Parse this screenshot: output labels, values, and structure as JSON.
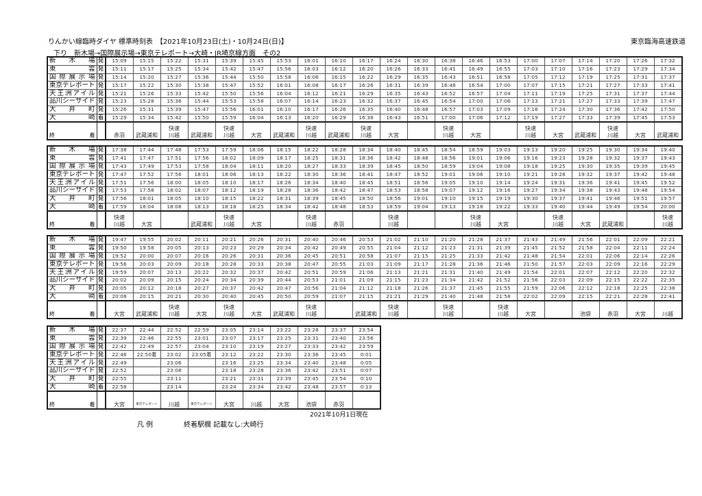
{
  "header": {
    "title": "りんかい線臨時ダイヤ 標準時刻表　【2021年10月23日(土)・10月24日(日)】",
    "company": "東京臨海高速鉄道",
    "subtitle": "下り　新木場→国際展示場→東京テレポート→大崎・JR埼京線方面　その2"
  },
  "stations": [
    {
      "name": "新木場",
      "mark": "発"
    },
    {
      "name": "東雲",
      "mark": "発"
    },
    {
      "name": "国際展示場",
      "mark": "発"
    },
    {
      "name": "東京テレポート",
      "mark": "発"
    },
    {
      "name": "天王洲アイル",
      "mark": "発"
    },
    {
      "name": "品川シーサイド",
      "mark": "発"
    },
    {
      "name": "大井町",
      "mark": "発"
    },
    {
      "name": "大崎",
      "mark": "着"
    }
  ],
  "destination_label": "終着",
  "blocks": [
    {
      "times": [
        [
          "15:09",
          "15:15",
          "15:22",
          "15:31",
          "15:39",
          "15:45",
          "15:53",
          "16:01",
          "16:10",
          "16:17",
          "16:24",
          "16:30",
          "16:38",
          "16:46",
          "16:53",
          "17:00",
          "17:07",
          "17:14",
          "17:20",
          "17:26",
          "17:32"
        ],
        [
          "15:11",
          "15:17",
          "15:25",
          "15:34",
          "15:42",
          "15:47",
          "15:56",
          "16:03",
          "16:12",
          "16:20",
          "16:26",
          "16:33",
          "16:41",
          "16:49",
          "16:55",
          "17:03",
          "17:10",
          "17:16",
          "17:23",
          "17:29",
          "17:34"
        ],
        [
          "15:14",
          "15:20",
          "15:27",
          "15:36",
          "15:44",
          "15:50",
          "15:58",
          "16:06",
          "16:15",
          "16:22",
          "16:29",
          "16:35",
          "16:43",
          "16:51",
          "16:58",
          "17:05",
          "17:12",
          "17:19",
          "17:25",
          "17:31",
          "17:37"
        ],
        [
          "15:17",
          "15:22",
          "15:30",
          "15:38",
          "15:47",
          "15:52",
          "16:01",
          "16:08",
          "16:17",
          "16:26",
          "16:31",
          "16:39",
          "16:48",
          "16:54",
          "17:00",
          "17:07",
          "17:15",
          "17:21",
          "17:27",
          "17:33",
          "17:41"
        ],
        [
          "15:21",
          "15:26",
          "15:33",
          "15:42",
          "15:50",
          "15:56",
          "16:04",
          "16:12",
          "16:21",
          "16:29",
          "16:35",
          "16:43",
          "16:52",
          "16:57",
          "17:04",
          "17:11",
          "17:19",
          "17:25",
          "17:31",
          "17:37",
          "17:44"
        ],
        [
          "15:23",
          "15:28",
          "15:36",
          "15:44",
          "15:53",
          "15:58",
          "16:07",
          "16:14",
          "16:23",
          "16:32",
          "16:37",
          "16:45",
          "16:54",
          "17:00",
          "17:06",
          "17:13",
          "17:21",
          "17:27",
          "17:33",
          "17:39",
          "17:47"
        ],
        [
          "15:26",
          "15:31",
          "15:39",
          "15:47",
          "15:56",
          "16:01",
          "16:10",
          "16:17",
          "16:26",
          "16:35",
          "16:40",
          "16:48",
          "16:57",
          "17:03",
          "17:09",
          "17:16",
          "17:24",
          "17:30",
          "17:36",
          "17:42",
          "17:50"
        ],
        [
          "15:29",
          "15:34",
          "15:42",
          "15:50",
          "15:59",
          "16:04",
          "16:13",
          "16:20",
          "16:29",
          "16:38",
          "16:43",
          "16:51",
          "17:00",
          "17:06",
          "17:12",
          "17:19",
          "17:27",
          "17:33",
          "17:39",
          "17:45",
          "17:53"
        ]
      ],
      "destinations": [
        "赤羽",
        "武蔵浦和",
        "快速 川越",
        "武蔵浦和",
        "快速 川越",
        "大宮",
        "武蔵浦和",
        "快速 川越",
        "武蔵浦和",
        "快速 川越",
        "大宮",
        "",
        "快速 川越",
        "大宮",
        "",
        "快速 川越",
        "大宮",
        "武蔵浦和",
        "快速 川越",
        "大宮",
        "武蔵浦和"
      ]
    },
    {
      "times": [
        [
          "17:38",
          "17:44",
          "17:48",
          "17:53",
          "17:59",
          "18:06",
          "18:15",
          "18:22",
          "18:28",
          "18:34",
          "18:40",
          "18:45",
          "18:54",
          "18:59",
          "19:03",
          "19:13",
          "19:20",
          "19:25",
          "19:30",
          "19:34",
          "19:40"
        ],
        [
          "17:41",
          "17:47",
          "17:51",
          "17:56",
          "18:02",
          "18:09",
          "18:17",
          "18:25",
          "18:31",
          "18:36",
          "18:42",
          "18:48",
          "18:56",
          "19:01",
          "19:06",
          "19:16",
          "19:23",
          "19:28",
          "19:32",
          "19:37",
          "19:43"
        ],
        [
          "17:43",
          "17:49",
          "17:53",
          "17:58",
          "18:04",
          "18:11",
          "18:20",
          "18:27",
          "18:33",
          "18:39",
          "18:45",
          "18:50",
          "18:59",
          "19:04",
          "19:08",
          "19:18",
          "19:25",
          "19:30",
          "19:35",
          "19:39",
          "19:45"
        ],
        [
          "17:47",
          "17:52",
          "17:56",
          "18:01",
          "18:06",
          "18:13",
          "18:22",
          "18:30",
          "18:36",
          "18:41",
          "18:47",
          "18:52",
          "19:01",
          "19:06",
          "19:10",
          "19:21",
          "19:28",
          "19:32",
          "19:37",
          "19:42",
          "19:48"
        ],
        [
          "17:51",
          "17:56",
          "18:00",
          "18:05",
          "18:10",
          "18:17",
          "18:26",
          "18:34",
          "18:40",
          "18:45",
          "18:51",
          "18:56",
          "19:05",
          "19:10",
          "19:14",
          "19:24",
          "19:31",
          "19:36",
          "19:41",
          "19:45",
          "19:52"
        ],
        [
          "17:53",
          "17:58",
          "18:02",
          "18:07",
          "18:12",
          "18:19",
          "18:28",
          "18:36",
          "18:42",
          "18:47",
          "18:53",
          "18:58",
          "19:07",
          "19:12",
          "19:16",
          "19:27",
          "19:34",
          "19:38",
          "19:43",
          "19:48",
          "19:54"
        ],
        [
          "17:56",
          "18:01",
          "18:05",
          "18:10",
          "18:15",
          "18:22",
          "18:31",
          "18:39",
          "18:45",
          "18:50",
          "18:56",
          "19:01",
          "19:10",
          "19:15",
          "19:19",
          "19:30",
          "19:37",
          "19:41",
          "19:46",
          "19:51",
          "19:57"
        ],
        [
          "17:59",
          "18:04",
          "18:08",
          "18:13",
          "18:18",
          "18:25",
          "18:34",
          "18:42",
          "18:48",
          "18:53",
          "18:59",
          "19:04",
          "19:13",
          "19:18",
          "19:22",
          "19:33",
          "19:40",
          "19:44",
          "19:49",
          "19:54",
          "20:00"
        ]
      ],
      "destinations": [
        "快速 川越",
        "大宮",
        "",
        "武蔵浦和",
        "快速 川越",
        "大宮",
        "",
        "快速 川越",
        "赤羽",
        "",
        "快速 川越",
        "",
        "",
        "快速 川越",
        "大宮",
        "",
        "快速 川越",
        "大宮",
        "武蔵浦和",
        "",
        "快速 川越"
      ]
    },
    {
      "times": [
        [
          "19:47",
          "19:55",
          "20:02",
          "20:11",
          "20:21",
          "20:26",
          "20:31",
          "20:40",
          "20:46",
          "20:53",
          "21:02",
          "21:10",
          "21:20",
          "21:28",
          "21:37",
          "21:43",
          "21:49",
          "21:56",
          "22:01",
          "22:09",
          "22:21"
        ],
        [
          "19:50",
          "19:58",
          "20:05",
          "20:13",
          "20:23",
          "20:29",
          "20:34",
          "20:42",
          "20:49",
          "20:55",
          "21:04",
          "21:12",
          "21:23",
          "21:31",
          "21:39",
          "21:45",
          "21:52",
          "21:58",
          "22:04",
          "22:11",
          "22:24"
        ],
        [
          "19:52",
          "20:00",
          "20:07",
          "20:16",
          "20:26",
          "20:31",
          "20:36",
          "20:45",
          "20:51",
          "20:58",
          "21:07",
          "21:15",
          "21:25",
          "21:33",
          "21:42",
          "21:48",
          "21:54",
          "22:01",
          "22:06",
          "22:14",
          "22:26"
        ],
        [
          "19:56",
          "20:03",
          "20:09",
          "20:18",
          "20:28",
          "20:33",
          "20:38",
          "20:47",
          "20:55",
          "21:03",
          "21:09",
          "21:17",
          "21:28",
          "21:36",
          "21:46",
          "21:50",
          "21:57",
          "22:03",
          "22:09",
          "22:16",
          "22:29"
        ],
        [
          "19:59",
          "20:07",
          "20:13",
          "20:22",
          "20:32",
          "20:37",
          "20:42",
          "20:51",
          "20:59",
          "21:06",
          "21:13",
          "21:21",
          "21:31",
          "21:40",
          "21:49",
          "21:54",
          "22:01",
          "22:07",
          "22:12",
          "22:20",
          "22:32"
        ],
        [
          "20:02",
          "20:09",
          "20:15",
          "20:24",
          "20:34",
          "20:39",
          "20:44",
          "20:53",
          "21:01",
          "21:09",
          "21:15",
          "21:23",
          "21:34",
          "21:42",
          "21:52",
          "21:56",
          "22:03",
          "22:09",
          "22:15",
          "22:22",
          "22:35"
        ],
        [
          "20:05",
          "20:12",
          "20:18",
          "20:27",
          "20:37",
          "20:42",
          "20:47",
          "20:56",
          "21:04",
          "21:12",
          "21:18",
          "21:26",
          "21:37",
          "21:45",
          "21:55",
          "21:59",
          "22:06",
          "22:12",
          "22:18",
          "22:25",
          "22:38"
        ],
        [
          "20:08",
          "20:15",
          "20:21",
          "20:30",
          "20:40",
          "20:45",
          "20:50",
          "20:59",
          "21:07",
          "21:15",
          "21:21",
          "21:29",
          "21:40",
          "21:48",
          "21:58",
          "22:02",
          "22:09",
          "22:15",
          "22:21",
          "22:28",
          "22:41"
        ]
      ],
      "destinations": [
        "大宮",
        "武蔵浦和",
        "快速 川越",
        "大宮",
        "快速 川越",
        "大宮",
        "武蔵浦和",
        "快速 川越",
        "",
        "武蔵浦和",
        "快速 川越",
        "",
        "快速 川越",
        "",
        "快速 川越",
        "大宮",
        "",
        "池袋",
        "赤羽",
        "大宮",
        "川越"
      ]
    },
    {
      "times": [
        [
          "22:37",
          "22:44",
          "22:52",
          "22:59",
          "23:05",
          "23:14",
          "23:22",
          "23:28",
          "23:37",
          "23:54"
        ],
        [
          "22:39",
          "22:46",
          "22:55",
          "23:01",
          "23:07",
          "23:17",
          "23:25",
          "23:31",
          "23:40",
          "23:56"
        ],
        [
          "22:42",
          "22:49",
          "22:57",
          "23:04",
          "23:10",
          "23:19",
          "23:27",
          "23:33",
          "23:42",
          "23:59"
        ],
        [
          "22:46",
          "22:50着",
          "23:02",
          "23:05着",
          "23:12",
          "23:22",
          "23:30",
          "23:36",
          "23:45",
          "0:01"
        ],
        [
          "22:49",
          "",
          "23:06",
          "",
          "23:16",
          "23:25",
          "23:34",
          "23:40",
          "23:48",
          "0:05"
        ],
        [
          "22:52",
          "",
          "23:08",
          "",
          "23:18",
          "23:28",
          "23:36",
          "23:42",
          "23:51",
          "0:07"
        ],
        [
          "22:55",
          "",
          "23:11",
          "",
          "23:21",
          "23:31",
          "23:39",
          "23:45",
          "23:54",
          "0:10"
        ],
        [
          "22:58",
          "",
          "23:14",
          "",
          "23:24",
          "23:34",
          "23:42",
          "23:48",
          "23:57",
          "0:13"
        ]
      ],
      "destinations": [
        "大宮",
        "東京テレポート",
        "川越",
        "東京テレポート",
        "大宮",
        "川越",
        "大宮",
        "池袋",
        "赤羽",
        ""
      ]
    }
  ],
  "footer": {
    "as_of": "2021年10月1日現在",
    "legend_heading": "凡 例",
    "legend_text": "終着駅欄 記載なし:大崎行"
  }
}
